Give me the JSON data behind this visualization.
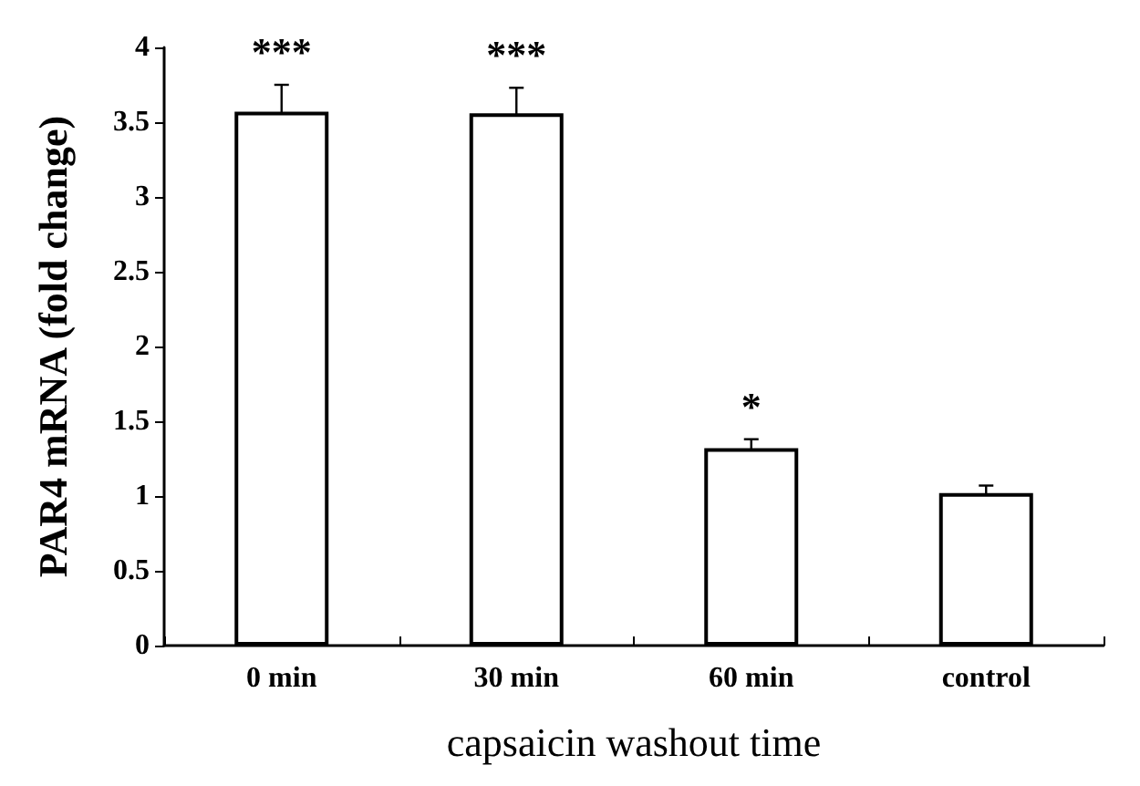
{
  "chart_data": {
    "type": "bar",
    "xlabel": "capsaicin washout time",
    "ylabel": "PAR4 mRNA (fold change)",
    "categories": [
      "0 min",
      "30 min",
      "60 min",
      "control"
    ],
    "values": [
      3.57,
      3.56,
      1.32,
      1.02
    ],
    "errors": [
      0.18,
      0.17,
      0.06,
      0.05
    ],
    "color": "#ffffff",
    "ylim": [
      0,
      4
    ],
    "yticks": [
      0,
      0.5,
      1,
      1.5,
      2,
      2.5,
      3,
      3.5,
      4
    ],
    "grid": false,
    "annotations": [
      {
        "text": "***",
        "x": "0 min",
        "y": 3.57
      },
      {
        "text": "***",
        "x": "30 min",
        "y": 3.56
      },
      {
        "text": "*",
        "x": "60 min",
        "y": 1.32
      }
    ]
  }
}
